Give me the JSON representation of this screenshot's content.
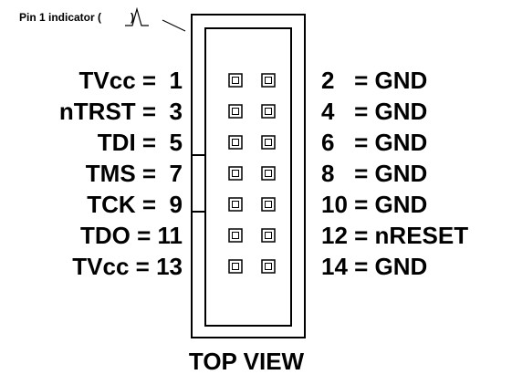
{
  "pin1_indicator": {
    "prefix": "Pin 1 indicator (",
    "suffix": ")"
  },
  "view_label": "TOP VIEW",
  "rows": [
    {
      "left": "TVcc =  1",
      "right": "2   = GND"
    },
    {
      "left": "nTRST =  3",
      "right": "4   = GND"
    },
    {
      "left": "TDI =  5",
      "right": "6   = GND"
    },
    {
      "left": "TMS =  7",
      "right": "8   = GND"
    },
    {
      "left": "TCK =  9",
      "right": "10 = GND"
    },
    {
      "left": "TDO = 11",
      "right": "12 = nRESET"
    },
    {
      "left": "TVcc = 13",
      "right": "14 = GND"
    }
  ],
  "colors": {
    "line": "#000000",
    "background": "#ffffff"
  }
}
